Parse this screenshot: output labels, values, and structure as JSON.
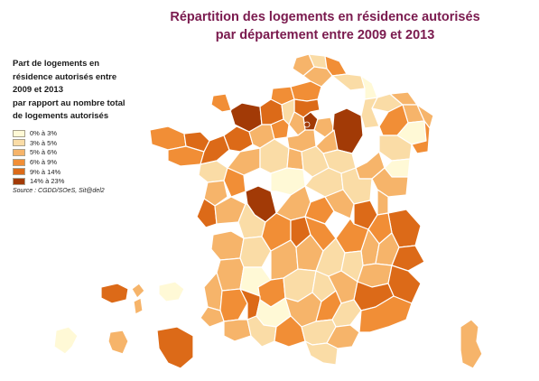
{
  "title_line1": "Répartition des logements en résidence autorisés",
  "title_line2": "par département entre 2009 et 2013",
  "legend": {
    "title_lines": [
      "Part de logements en",
      "résidence autorisés entre",
      "2009 et 2013",
      "par rapport au nombre total",
      "de logements autorisés"
    ],
    "classes": [
      {
        "label": "0% à 3%",
        "color": "#fff9d6"
      },
      {
        "label": "3% à 5%",
        "color": "#fadca6"
      },
      {
        "label": "5% à 6%",
        "color": "#f6b46a"
      },
      {
        "label": "6% à 9%",
        "color": "#f18e36"
      },
      {
        "label": "9% à 14%",
        "color": "#dc6a18"
      },
      {
        "label": "14% à 23%",
        "color": "#a23a06"
      }
    ],
    "source": "Source : CGDD/SOeS, Sit@del2"
  }
}
